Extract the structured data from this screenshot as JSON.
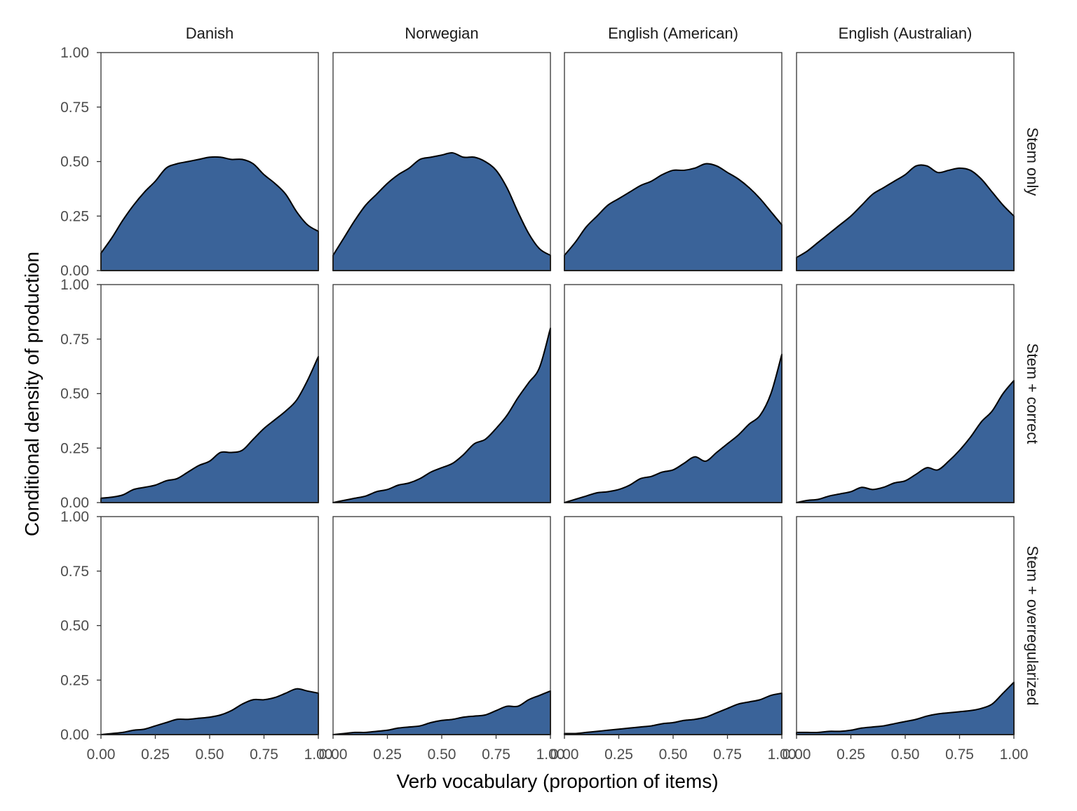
{
  "chart_data": {
    "type": "area",
    "xlabel": "Verb vocabulary (proportion of items)",
    "ylabel": "Conditional density of production",
    "xlim": [
      0,
      1
    ],
    "ylim": [
      0,
      1
    ],
    "x_ticks": [
      "0.00",
      "0.25",
      "0.50",
      "0.75",
      "1.00"
    ],
    "y_ticks": [
      "0.00",
      "0.25",
      "0.50",
      "0.75",
      "1.00"
    ],
    "columns": [
      "Danish",
      "Norwegian",
      "English (American)",
      "English (Australian)"
    ],
    "rows": [
      "Stem only",
      "Stem + correct",
      "Stem + overregularized"
    ],
    "fill_color": "#3A6399",
    "line_color": "#000000",
    "grid": false,
    "panels": [
      {
        "column": "Danish",
        "row": "Stem only",
        "x": [
          0,
          0.05,
          0.1,
          0.15,
          0.2,
          0.25,
          0.3,
          0.35,
          0.4,
          0.45,
          0.5,
          0.55,
          0.6,
          0.65,
          0.7,
          0.75,
          0.8,
          0.85,
          0.9,
          0.95,
          1
        ],
        "y": [
          0.08,
          0.15,
          0.23,
          0.3,
          0.36,
          0.41,
          0.47,
          0.49,
          0.5,
          0.51,
          0.52,
          0.52,
          0.51,
          0.51,
          0.49,
          0.44,
          0.4,
          0.35,
          0.27,
          0.21,
          0.18
        ]
      },
      {
        "column": "Norwegian",
        "row": "Stem only",
        "x": [
          0,
          0.05,
          0.1,
          0.15,
          0.2,
          0.25,
          0.3,
          0.35,
          0.4,
          0.45,
          0.5,
          0.55,
          0.6,
          0.65,
          0.7,
          0.75,
          0.8,
          0.85,
          0.9,
          0.95,
          1
        ],
        "y": [
          0.07,
          0.15,
          0.23,
          0.3,
          0.35,
          0.4,
          0.44,
          0.47,
          0.51,
          0.52,
          0.53,
          0.54,
          0.52,
          0.52,
          0.5,
          0.46,
          0.38,
          0.27,
          0.17,
          0.1,
          0.07
        ]
      },
      {
        "column": "English (American)",
        "row": "Stem only",
        "x": [
          0,
          0.05,
          0.1,
          0.15,
          0.2,
          0.25,
          0.3,
          0.35,
          0.4,
          0.45,
          0.5,
          0.55,
          0.6,
          0.65,
          0.7,
          0.75,
          0.8,
          0.85,
          0.9,
          0.95,
          1
        ],
        "y": [
          0.07,
          0.13,
          0.2,
          0.25,
          0.3,
          0.33,
          0.36,
          0.39,
          0.41,
          0.44,
          0.46,
          0.46,
          0.47,
          0.49,
          0.48,
          0.45,
          0.42,
          0.38,
          0.33,
          0.27,
          0.21
        ]
      },
      {
        "column": "English (Australian)",
        "row": "Stem only",
        "x": [
          0,
          0.05,
          0.1,
          0.15,
          0.2,
          0.25,
          0.3,
          0.35,
          0.4,
          0.45,
          0.5,
          0.55,
          0.6,
          0.65,
          0.7,
          0.75,
          0.8,
          0.85,
          0.9,
          0.95,
          1
        ],
        "y": [
          0.06,
          0.09,
          0.13,
          0.17,
          0.21,
          0.25,
          0.3,
          0.35,
          0.38,
          0.41,
          0.44,
          0.48,
          0.48,
          0.45,
          0.46,
          0.47,
          0.46,
          0.42,
          0.36,
          0.3,
          0.25
        ]
      },
      {
        "column": "Danish",
        "row": "Stem + correct",
        "x": [
          0,
          0.05,
          0.1,
          0.15,
          0.2,
          0.25,
          0.3,
          0.35,
          0.4,
          0.45,
          0.5,
          0.55,
          0.6,
          0.65,
          0.7,
          0.75,
          0.8,
          0.85,
          0.9,
          0.95,
          1
        ],
        "y": [
          0.02,
          0.025,
          0.035,
          0.06,
          0.07,
          0.08,
          0.1,
          0.11,
          0.14,
          0.17,
          0.19,
          0.23,
          0.23,
          0.24,
          0.29,
          0.34,
          0.38,
          0.42,
          0.47,
          0.56,
          0.67
        ]
      },
      {
        "column": "Norwegian",
        "row": "Stem + correct",
        "x": [
          0,
          0.05,
          0.1,
          0.15,
          0.2,
          0.25,
          0.3,
          0.35,
          0.4,
          0.45,
          0.5,
          0.55,
          0.6,
          0.65,
          0.7,
          0.75,
          0.8,
          0.85,
          0.9,
          0.95,
          1
        ],
        "y": [
          0.0,
          0.01,
          0.02,
          0.03,
          0.05,
          0.06,
          0.08,
          0.09,
          0.11,
          0.14,
          0.16,
          0.18,
          0.22,
          0.27,
          0.29,
          0.34,
          0.4,
          0.48,
          0.55,
          0.62,
          0.8
        ]
      },
      {
        "column": "English (American)",
        "row": "Stem + correct",
        "x": [
          0,
          0.05,
          0.1,
          0.15,
          0.2,
          0.25,
          0.3,
          0.35,
          0.4,
          0.45,
          0.5,
          0.55,
          0.6,
          0.65,
          0.7,
          0.75,
          0.8,
          0.85,
          0.9,
          0.95,
          1
        ],
        "y": [
          0.0,
          0.015,
          0.03,
          0.045,
          0.05,
          0.06,
          0.08,
          0.11,
          0.12,
          0.14,
          0.15,
          0.18,
          0.21,
          0.19,
          0.23,
          0.27,
          0.31,
          0.36,
          0.4,
          0.5,
          0.68
        ]
      },
      {
        "column": "English (Australian)",
        "row": "Stem + correct",
        "x": [
          0,
          0.05,
          0.1,
          0.15,
          0.2,
          0.25,
          0.3,
          0.35,
          0.4,
          0.45,
          0.5,
          0.55,
          0.6,
          0.65,
          0.7,
          0.75,
          0.8,
          0.85,
          0.9,
          0.95,
          1
        ],
        "y": [
          0.0,
          0.01,
          0.015,
          0.03,
          0.04,
          0.05,
          0.07,
          0.06,
          0.07,
          0.09,
          0.1,
          0.13,
          0.16,
          0.15,
          0.19,
          0.24,
          0.3,
          0.37,
          0.42,
          0.5,
          0.56
        ]
      },
      {
        "column": "Danish",
        "row": "Stem + overregularized",
        "x": [
          0,
          0.05,
          0.1,
          0.15,
          0.2,
          0.25,
          0.3,
          0.35,
          0.4,
          0.45,
          0.5,
          0.55,
          0.6,
          0.65,
          0.7,
          0.75,
          0.8,
          0.85,
          0.9,
          0.95,
          1
        ],
        "y": [
          0.0,
          0.005,
          0.01,
          0.02,
          0.025,
          0.04,
          0.055,
          0.07,
          0.07,
          0.075,
          0.08,
          0.09,
          0.11,
          0.14,
          0.16,
          0.16,
          0.17,
          0.19,
          0.21,
          0.2,
          0.19
        ]
      },
      {
        "column": "Norwegian",
        "row": "Stem + overregularized",
        "x": [
          0,
          0.05,
          0.1,
          0.15,
          0.2,
          0.25,
          0.3,
          0.35,
          0.4,
          0.45,
          0.5,
          0.55,
          0.6,
          0.65,
          0.7,
          0.75,
          0.8,
          0.85,
          0.9,
          0.95,
          1
        ],
        "y": [
          0.0,
          0.005,
          0.01,
          0.01,
          0.015,
          0.02,
          0.03,
          0.035,
          0.04,
          0.055,
          0.065,
          0.07,
          0.08,
          0.085,
          0.09,
          0.11,
          0.13,
          0.13,
          0.16,
          0.18,
          0.2
        ]
      },
      {
        "column": "English (American)",
        "row": "Stem + overregularized",
        "x": [
          0,
          0.05,
          0.1,
          0.15,
          0.2,
          0.25,
          0.3,
          0.35,
          0.4,
          0.45,
          0.5,
          0.55,
          0.6,
          0.65,
          0.7,
          0.75,
          0.8,
          0.85,
          0.9,
          0.95,
          1
        ],
        "y": [
          0.005,
          0.005,
          0.01,
          0.015,
          0.02,
          0.025,
          0.03,
          0.035,
          0.04,
          0.05,
          0.055,
          0.065,
          0.07,
          0.08,
          0.1,
          0.12,
          0.14,
          0.15,
          0.16,
          0.18,
          0.19
        ]
      },
      {
        "column": "English (Australian)",
        "row": "Stem + overregularized",
        "x": [
          0,
          0.05,
          0.1,
          0.15,
          0.2,
          0.25,
          0.3,
          0.35,
          0.4,
          0.45,
          0.5,
          0.55,
          0.6,
          0.65,
          0.7,
          0.75,
          0.8,
          0.85,
          0.9,
          0.95,
          1
        ],
        "y": [
          0.01,
          0.01,
          0.01,
          0.015,
          0.015,
          0.02,
          0.03,
          0.035,
          0.04,
          0.05,
          0.06,
          0.07,
          0.085,
          0.095,
          0.1,
          0.105,
          0.11,
          0.12,
          0.14,
          0.19,
          0.24
        ]
      }
    ]
  }
}
